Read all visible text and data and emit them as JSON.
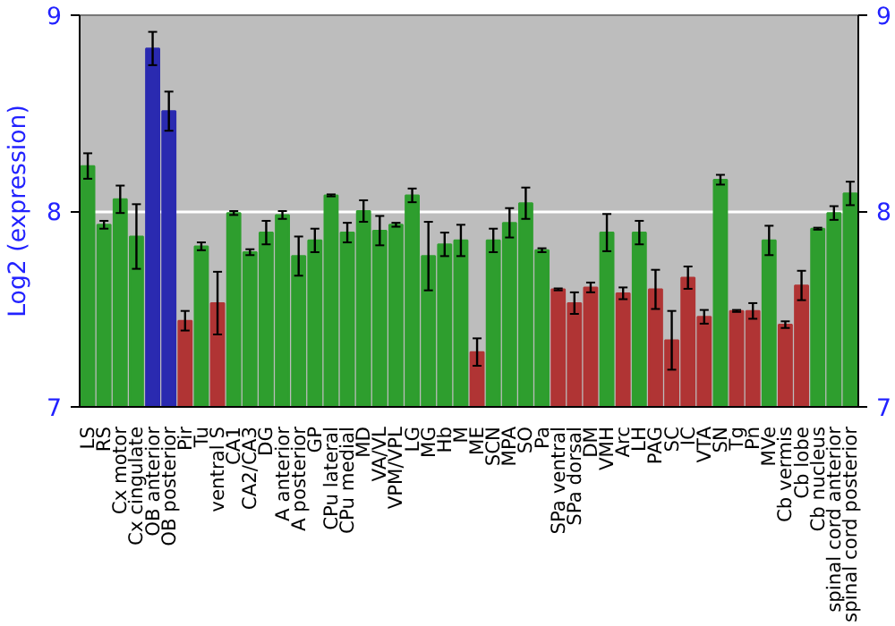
{
  "chart_data": {
    "type": "bar",
    "ylabel": "Log2 (expression)",
    "categories": [
      "LS",
      "RS",
      "Cx motor",
      "Cx cingulate",
      "OB anterior",
      "OB posterior",
      "Pir",
      "Tu",
      "ventral S",
      "CA1",
      "CA2/CA3",
      "DG",
      "A anterior",
      "A posterior",
      "GP",
      "CPu lateral",
      "CPu medial",
      "MD",
      "VA/VL",
      "VPM/VPL",
      "LG",
      "MG",
      "Hb",
      "M",
      "ME",
      "SCN",
      "MPA",
      "SO",
      "Pa",
      "SPa ventral",
      "SPa dorsal",
      "DM",
      "VMH",
      "Arc",
      "LH",
      "PAG",
      "SC",
      "IC",
      "VTA",
      "SN",
      "Tg",
      "Pn",
      "MVe",
      "Cb vermis",
      "Cb lobe",
      "Cb nucleus",
      "spinal cord anterior",
      "spinal cord posterior"
    ],
    "values": [
      8.23,
      7.93,
      8.06,
      7.87,
      8.83,
      8.51,
      7.44,
      7.82,
      7.53,
      7.99,
      7.79,
      7.89,
      7.98,
      7.77,
      7.85,
      8.08,
      7.89,
      8.0,
      7.9,
      7.93,
      8.08,
      7.77,
      7.83,
      7.85,
      7.28,
      7.85,
      7.94,
      8.04,
      7.8,
      7.6,
      7.53,
      7.61,
      7.89,
      7.58,
      7.89,
      7.6,
      7.34,
      7.66,
      7.46,
      8.16,
      7.49,
      7.49,
      7.85,
      7.42,
      7.62,
      7.91,
      7.99,
      8.09
    ],
    "errors": [
      0.065,
      0.02,
      0.07,
      0.165,
      0.085,
      0.1,
      0.05,
      0.02,
      0.16,
      0.01,
      0.015,
      0.06,
      0.02,
      0.1,
      0.06,
      0.005,
      0.05,
      0.055,
      0.075,
      0.01,
      0.035,
      0.175,
      0.06,
      0.08,
      0.07,
      0.06,
      0.075,
      0.08,
      0.01,
      0.005,
      0.055,
      0.025,
      0.095,
      0.03,
      0.06,
      0.1,
      0.15,
      0.057,
      0.035,
      0.025,
      0.005,
      0.04,
      0.075,
      0.017,
      0.075,
      0.005,
      0.035,
      0.06
    ],
    "colors": [
      "#2e9e2e",
      "#2e9e2e",
      "#2e9e2e",
      "#2e9e2e",
      "#2a2ab0",
      "#2a2ab0",
      "#b03434",
      "#2e9e2e",
      "#b03434",
      "#2e9e2e",
      "#2e9e2e",
      "#2e9e2e",
      "#2e9e2e",
      "#2e9e2e",
      "#2e9e2e",
      "#2e9e2e",
      "#2e9e2e",
      "#2e9e2e",
      "#2e9e2e",
      "#2e9e2e",
      "#2e9e2e",
      "#2e9e2e",
      "#2e9e2e",
      "#2e9e2e",
      "#b03434",
      "#2e9e2e",
      "#2e9e2e",
      "#2e9e2e",
      "#2e9e2e",
      "#b03434",
      "#b03434",
      "#b03434",
      "#2e9e2e",
      "#b03434",
      "#2e9e2e",
      "#b03434",
      "#b03434",
      "#b03434",
      "#b03434",
      "#2e9e2e",
      "#b03434",
      "#b03434",
      "#2e9e2e",
      "#b03434",
      "#b03434",
      "#2e9e2e",
      "#2e9e2e",
      "#2e9e2e"
    ],
    "ylim": [
      7,
      9
    ],
    "yticks": [
      7,
      8,
      9
    ],
    "y2lim": [
      7,
      9
    ],
    "y2ticks": [
      7,
      8,
      9
    ],
    "grid": "y"
  }
}
